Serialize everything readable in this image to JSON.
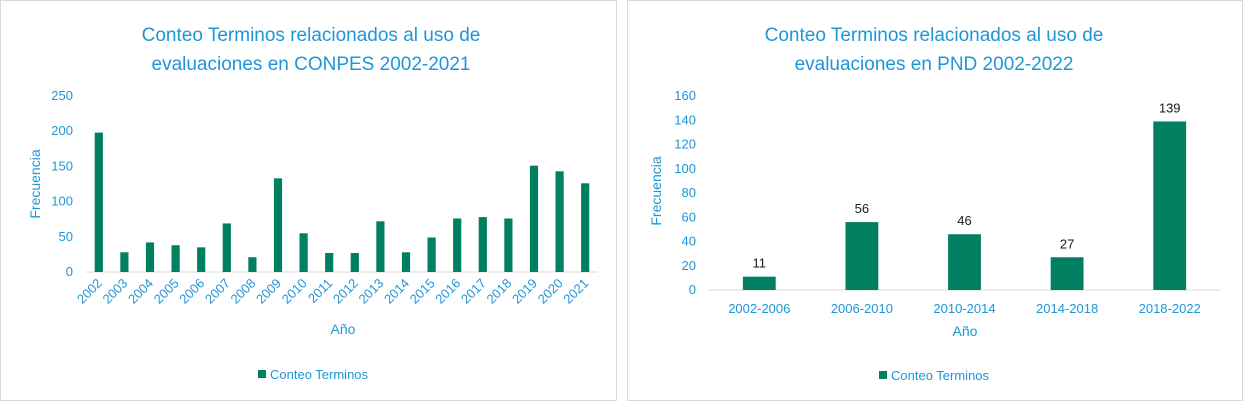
{
  "colors": {
    "bar": "#008060",
    "text": "#1e96d8",
    "axis": "#d9d9d9"
  },
  "chart_data": [
    {
      "type": "bar",
      "title": "Conteo Terminos relacionados al uso de evaluaciones en CONPES 2002-2021",
      "title_lines": [
        "Conteo Terminos relacionados al uso de",
        "evaluaciones en CONPES 2002-2021"
      ],
      "xlabel": "Año",
      "ylabel": "Frecuencia",
      "ylim": [
        0,
        250
      ],
      "yticks": [
        0,
        50,
        100,
        150,
        200,
        250
      ],
      "ytick_labels": [
        "0",
        "50",
        "100",
        "150",
        "200",
        "250"
      ],
      "categories": [
        "2002",
        "2003",
        "2004",
        "2005",
        "2006",
        "2007",
        "2008",
        "2009",
        "2010",
        "2011",
        "2012",
        "2013",
        "2014",
        "2015",
        "2016",
        "2017",
        "2018",
        "2019",
        "2020",
        "2021"
      ],
      "series": [
        {
          "name": "Conteo Terminos",
          "values": [
            198,
            28,
            42,
            38,
            35,
            69,
            21,
            133,
            55,
            27,
            27,
            72,
            28,
            49,
            76,
            78,
            76,
            151,
            143,
            126
          ]
        }
      ],
      "legend": {
        "position": "bottom",
        "entries": [
          "Conteo Terminos"
        ]
      },
      "grid": false,
      "data_labels": false
    },
    {
      "type": "bar",
      "title": "Conteo Terminos relacionados al uso de evaluaciones en PND 2002-2022",
      "title_lines": [
        "Conteo Terminos relacionados al uso de",
        "evaluaciones en PND 2002-2022"
      ],
      "xlabel": "Año",
      "ylabel": "Frecuencia",
      "ylim": [
        0,
        160
      ],
      "yticks": [
        0,
        20,
        40,
        60,
        80,
        100,
        120,
        140,
        160
      ],
      "ytick_labels": [
        "0",
        "20",
        "40",
        "60",
        "80",
        "100",
        "120",
        "140",
        "160"
      ],
      "categories": [
        "2002-2006",
        "2006-2010",
        "2010-2014",
        "2014-2018",
        "2018-2022"
      ],
      "series": [
        {
          "name": "Conteo Terminos",
          "values": [
            11,
            56,
            46,
            27,
            139
          ]
        }
      ],
      "value_labels": [
        "11",
        "56",
        "46",
        "27",
        "139"
      ],
      "legend": {
        "position": "bottom",
        "entries": [
          "Conteo Terminos"
        ]
      },
      "grid": false,
      "data_labels": true
    }
  ]
}
